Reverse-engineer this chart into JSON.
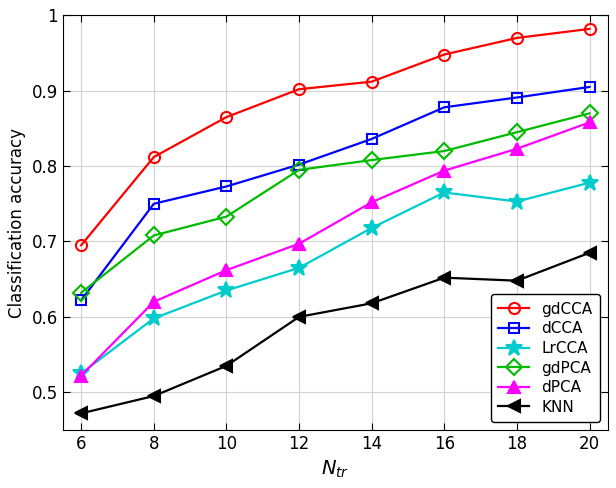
{
  "x": [
    6,
    8,
    10,
    12,
    14,
    16,
    18,
    20
  ],
  "gdCCA": [
    0.695,
    0.812,
    0.865,
    0.902,
    0.912,
    0.948,
    0.97,
    0.982
  ],
  "dCCA": [
    0.622,
    0.75,
    0.773,
    0.802,
    0.836,
    0.878,
    0.891,
    0.905
  ],
  "LrCCA": [
    0.525,
    0.598,
    0.635,
    0.665,
    0.718,
    0.765,
    0.753,
    0.778
  ],
  "gdPCA": [
    0.632,
    0.708,
    0.733,
    0.795,
    0.808,
    0.82,
    0.845,
    0.87
  ],
  "dPCA": [
    0.522,
    0.62,
    0.662,
    0.697,
    0.752,
    0.794,
    0.823,
    0.858
  ],
  "KNN": [
    0.472,
    0.495,
    0.535,
    0.6,
    0.618,
    0.652,
    0.648,
    0.685
  ],
  "colors": {
    "gdCCA": "#ff0000",
    "dCCA": "#0000ff",
    "LrCCA": "#00cccc",
    "gdPCA": "#00bb00",
    "dPCA": "#ff00ff",
    "KNN": "#000000"
  },
  "markers": {
    "gdCCA": "o",
    "dCCA": "s",
    "LrCCA": "*",
    "gdPCA": "D",
    "dPCA": "^",
    "KNN": "<"
  },
  "marker_sizes": {
    "gdCCA": 8,
    "dCCA": 7,
    "LrCCA": 12,
    "gdPCA": 8,
    "dPCA": 8,
    "KNN": 8
  },
  "markerfacecolors": {
    "gdCCA": "none",
    "dCCA": "none",
    "LrCCA": "#00cccc",
    "gdPCA": "none",
    "dPCA": "#ff00ff",
    "KNN": "#000000"
  },
  "xlabel": "N_{tr}",
  "ylabel": "Classification accuracy",
  "ylim": [
    0.45,
    1.0
  ],
  "xlim": [
    5.5,
    20.5
  ],
  "yticks": [
    0.5,
    0.6,
    0.7,
    0.8,
    0.9,
    1.0
  ],
  "xticks": [
    6,
    8,
    10,
    12,
    14,
    16,
    18,
    20
  ],
  "legend_loc": "lower right",
  "grid": true,
  "linewidth": 1.6
}
